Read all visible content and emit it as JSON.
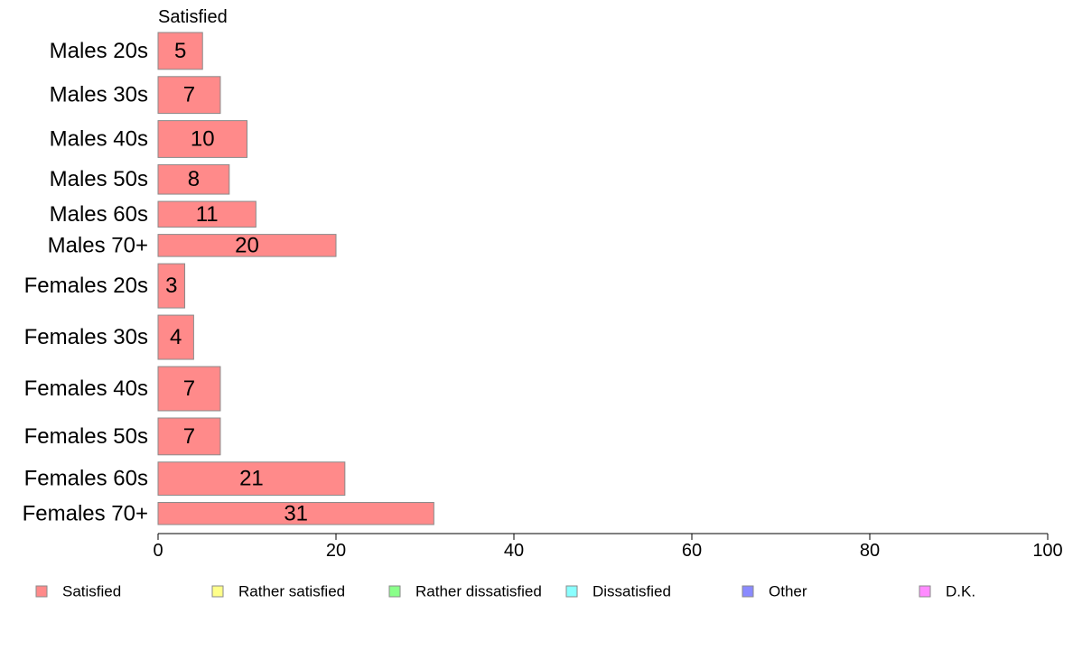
{
  "chart_data": {
    "type": "bar",
    "orientation": "horizontal",
    "stacked": true,
    "title": "Satisfied",
    "xlabel": "",
    "ylabel": "",
    "xlim": [
      0,
      100
    ],
    "xticks": [
      0,
      20,
      40,
      60,
      80,
      100
    ],
    "grid": false,
    "legend_position": "bottom",
    "categories": [
      "Males 20s",
      "Males 30s",
      "Males 40s",
      "Males 50s",
      "Males 60s",
      "Males 70+",
      "Females 20s",
      "Females 30s",
      "Females 40s",
      "Females 50s",
      "Females 60s",
      "Females 70+"
    ],
    "relative_bar_heights": [
      1.0,
      1.0,
      1.0,
      0.8,
      0.7,
      0.6,
      1.2,
      1.2,
      1.2,
      1.0,
      0.9,
      0.6
    ],
    "series": [
      {
        "name": "Satisfied",
        "color": "#ff8a8a",
        "values": [
          5,
          7,
          10,
          8,
          11,
          20,
          3,
          4,
          7,
          7,
          21,
          31
        ]
      }
    ],
    "legend": [
      {
        "label": "Satisfied",
        "color": "#ff8a8a"
      },
      {
        "label": "Rather satisfied",
        "color": "#ffff8a"
      },
      {
        "label": "Rather dissatisfied",
        "color": "#8aff8a"
      },
      {
        "label": "Dissatisfied",
        "color": "#8affff"
      },
      {
        "label": "Other",
        "color": "#8a8aff"
      },
      {
        "label": "D.K.",
        "color": "#ff8aff"
      }
    ]
  }
}
